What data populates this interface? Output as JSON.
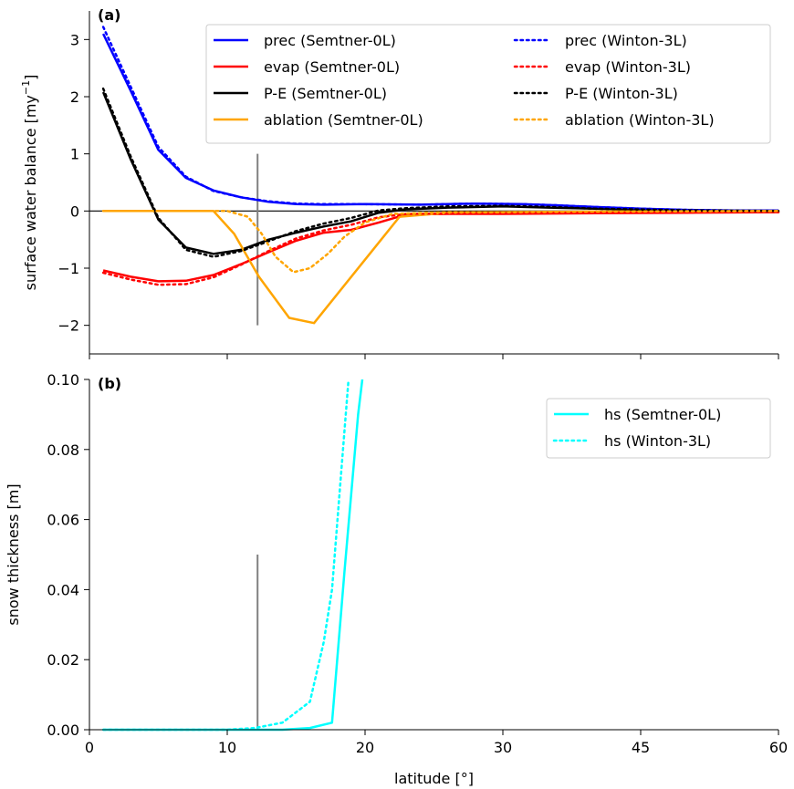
{
  "chart_data": [
    {
      "type": "line",
      "panel_label": "(a)",
      "xlabel": "",
      "ylabel": "surface water balance [my",
      "ylabel_sup": "−1",
      "ylabel_close": "]",
      "xlim": [
        0,
        60
      ],
      "ylim": [
        -2.5,
        3.5
      ],
      "xticks": [
        0,
        10,
        20,
        30,
        45,
        60
      ],
      "xticklabels_shown": false,
      "yticks": [
        -2,
        -1,
        0,
        1,
        2,
        3
      ],
      "yticklabels": [
        "−2",
        "−1",
        "0",
        "1",
        "2",
        "3"
      ],
      "legend_position": "top-right",
      "legend_columns": 2,
      "grid": false,
      "annotation_vline": {
        "x": 12.2,
        "y_range": [
          -2,
          1
        ],
        "color": "#808080"
      },
      "zero_line": {
        "y": 0,
        "color": "#000000"
      },
      "series": [
        {
          "name": "prec (Semtner-0L)",
          "color": "#0000ff",
          "style": "solid",
          "x": [
            1,
            3,
            5,
            7,
            9,
            11,
            13,
            15,
            17,
            20,
            24,
            28,
            32,
            36,
            40,
            45,
            50,
            55,
            60
          ],
          "y": [
            3.1,
            2.1,
            1.07,
            0.58,
            0.36,
            0.24,
            0.16,
            0.12,
            0.11,
            0.12,
            0.11,
            0.13,
            0.12,
            0.1,
            0.07,
            0.04,
            0.02,
            0.01,
            0.01
          ]
        },
        {
          "name": "evap (Semtner-0L)",
          "color": "#ff0000",
          "style": "solid",
          "x": [
            1,
            3,
            5,
            7,
            9,
            11,
            13,
            15,
            17,
            19,
            21,
            23,
            26,
            30,
            40,
            50,
            60
          ],
          "y": [
            -1.04,
            -1.15,
            -1.23,
            -1.22,
            -1.12,
            -0.93,
            -0.72,
            -0.52,
            -0.38,
            -0.33,
            -0.2,
            -0.06,
            -0.05,
            -0.05,
            -0.04,
            -0.03,
            -0.02
          ]
        },
        {
          "name": "P-E (Semtner-0L)",
          "color": "#000000",
          "style": "solid",
          "x": [
            1,
            3,
            5,
            7,
            9,
            11,
            13,
            15,
            17,
            19,
            21,
            23,
            26,
            30,
            35,
            40,
            50,
            60
          ],
          "y": [
            2.08,
            0.9,
            -0.15,
            -0.64,
            -0.75,
            -0.68,
            -0.5,
            -0.38,
            -0.27,
            -0.18,
            -0.03,
            0.03,
            0.06,
            0.08,
            0.06,
            0.04,
            0.01,
            0.0
          ]
        },
        {
          "name": "ablation (Semtner-0L)",
          "color": "#ffa500",
          "style": "solid",
          "x": [
            1,
            5,
            9,
            10.5,
            12.3,
            14.5,
            16.3,
            20.5,
            22.5,
            26,
            30,
            40,
            60
          ],
          "y": [
            0,
            0,
            0,
            -0.4,
            -1.15,
            -1.87,
            -1.96,
            -0.7,
            -0.1,
            -0.03,
            -0.02,
            -0.01,
            0
          ]
        },
        {
          "name": "prec (Winton-3L)",
          "color": "#0000ff",
          "style": "dotted",
          "x": [
            1,
            3,
            5,
            7,
            9,
            11,
            13,
            15,
            17,
            20,
            24,
            28,
            32,
            36,
            40,
            45,
            50,
            55,
            60
          ],
          "y": [
            3.22,
            2.17,
            1.12,
            0.6,
            0.35,
            0.24,
            0.17,
            0.13,
            0.12,
            0.12,
            0.11,
            0.13,
            0.12,
            0.1,
            0.07,
            0.04,
            0.02,
            0.01,
            0.01
          ]
        },
        {
          "name": "evap (Winton-3L)",
          "color": "#ff0000",
          "style": "dotted",
          "x": [
            1,
            3,
            5,
            7,
            9,
            11,
            13,
            15,
            17,
            19,
            21,
            23,
            26,
            30,
            40,
            50,
            60
          ],
          "y": [
            -1.08,
            -1.2,
            -1.29,
            -1.28,
            -1.16,
            -0.94,
            -0.7,
            -0.48,
            -0.34,
            -0.24,
            -0.11,
            -0.05,
            -0.04,
            -0.04,
            -0.03,
            -0.02,
            -0.02
          ]
        },
        {
          "name": "P-E (Winton-3L)",
          "color": "#000000",
          "style": "dotted",
          "x": [
            1,
            3,
            5,
            7,
            9,
            11,
            13,
            15,
            17,
            19,
            21,
            23,
            26,
            30,
            35,
            40,
            50,
            60
          ],
          "y": [
            2.14,
            0.95,
            -0.12,
            -0.68,
            -0.8,
            -0.7,
            -0.53,
            -0.35,
            -0.22,
            -0.12,
            0.01,
            0.05,
            0.08,
            0.09,
            0.07,
            0.04,
            0.01,
            0.0
          ]
        },
        {
          "name": "ablation (Winton-3L)",
          "color": "#ffa500",
          "style": "dotted",
          "x": [
            1,
            10,
            11.5,
            12.5,
            13.5,
            14.8,
            16,
            17.3,
            18.5,
            20,
            22,
            26,
            30,
            40,
            60
          ],
          "y": [
            0,
            0,
            -0.1,
            -0.4,
            -0.8,
            -1.07,
            -1.0,
            -0.75,
            -0.45,
            -0.2,
            -0.05,
            -0.02,
            -0.02,
            -0.01,
            0
          ]
        }
      ]
    },
    {
      "type": "line",
      "panel_label": "(b)",
      "xlabel": "latitude [°]",
      "ylabel": "snow thickness [m]",
      "xlim": [
        0,
        60
      ],
      "ylim": [
        0,
        0.1
      ],
      "xticks": [
        0,
        10,
        20,
        30,
        45,
        60
      ],
      "xticklabels": [
        "0",
        "10",
        "20",
        "30",
        "45",
        "60"
      ],
      "yticks": [
        0,
        0.02,
        0.04,
        0.06,
        0.08,
        0.1
      ],
      "yticklabels": [
        "0.00",
        "0.02",
        "0.04",
        "0.06",
        "0.08",
        "0.10"
      ],
      "legend_position": "top-right",
      "legend_columns": 1,
      "grid": false,
      "annotation_vline": {
        "x": 12.2,
        "y_range": [
          0,
          0.05
        ],
        "color": "#808080"
      },
      "series": [
        {
          "name": "hs (Semtner-0L)",
          "color": "#00ffff",
          "style": "solid",
          "x": [
            1,
            5,
            10,
            12,
            14,
            16,
            17.6,
            18.5,
            19.5,
            19.8
          ],
          "y": [
            0,
            0,
            0,
            0,
            0,
            0.0005,
            0.002,
            0.045,
            0.09,
            0.1
          ]
        },
        {
          "name": "hs (Winton-3L)",
          "color": "#00ffff",
          "style": "dotted",
          "x": [
            1,
            5,
            10,
            12,
            14,
            16,
            17,
            17.6,
            18.2,
            18.8
          ],
          "y": [
            0,
            0,
            0,
            0.0005,
            0.002,
            0.008,
            0.025,
            0.04,
            0.07,
            0.1
          ]
        }
      ]
    }
  ]
}
